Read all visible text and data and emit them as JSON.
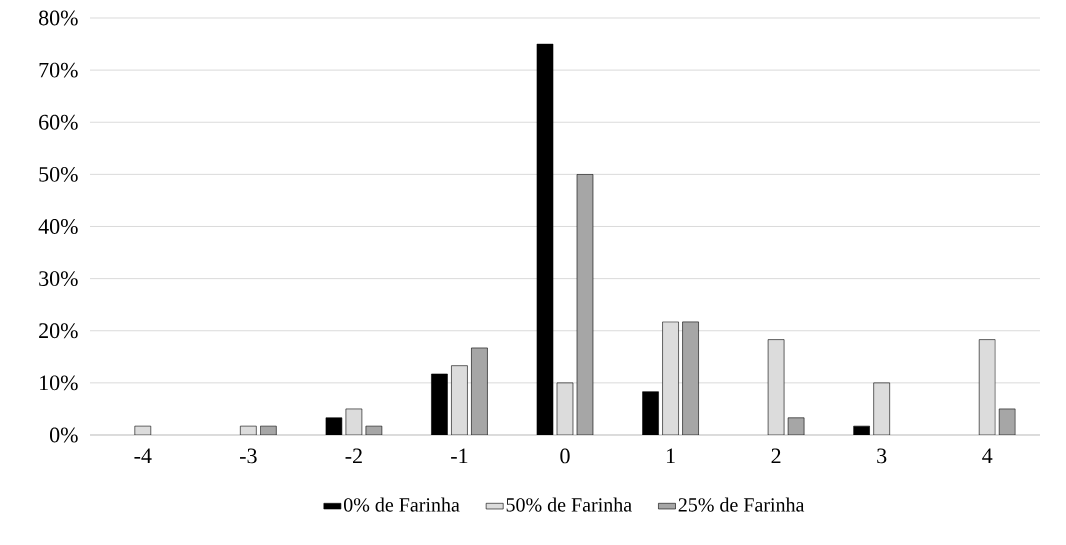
{
  "chart_data": {
    "type": "bar",
    "categories": [
      "-4",
      "-3",
      "-2",
      "-1",
      "0",
      "1",
      "2",
      "3",
      "4"
    ],
    "series": [
      {
        "name": "0% de Farinha",
        "color": "#000000",
        "values": [
          0,
          0,
          3.3,
          11.7,
          75,
          8.3,
          0,
          1.7,
          0
        ]
      },
      {
        "name": "50% de Farinha",
        "color": "#dcdcdc",
        "values": [
          1.7,
          1.7,
          5,
          13.3,
          10,
          21.7,
          18.3,
          10,
          18.3
        ]
      },
      {
        "name": "25% de Farinha",
        "color": "#a6a6a6",
        "values": [
          0,
          1.7,
          1.7,
          16.7,
          50,
          21.7,
          3.3,
          0,
          5
        ]
      }
    ],
    "ylim": [
      0,
      80
    ],
    "yticks": [
      {
        "value": 0,
        "label": "0%"
      },
      {
        "value": 10,
        "label": "10%"
      },
      {
        "value": 20,
        "label": "20%"
      },
      {
        "value": 30,
        "label": "30%"
      },
      {
        "value": 40,
        "label": "40%"
      },
      {
        "value": 50,
        "label": "50%"
      },
      {
        "value": 60,
        "label": "60%"
      },
      {
        "value": 70,
        "label": "70%"
      },
      {
        "value": 80,
        "label": "80%"
      }
    ],
    "grid": "y",
    "legend": "bottom"
  }
}
